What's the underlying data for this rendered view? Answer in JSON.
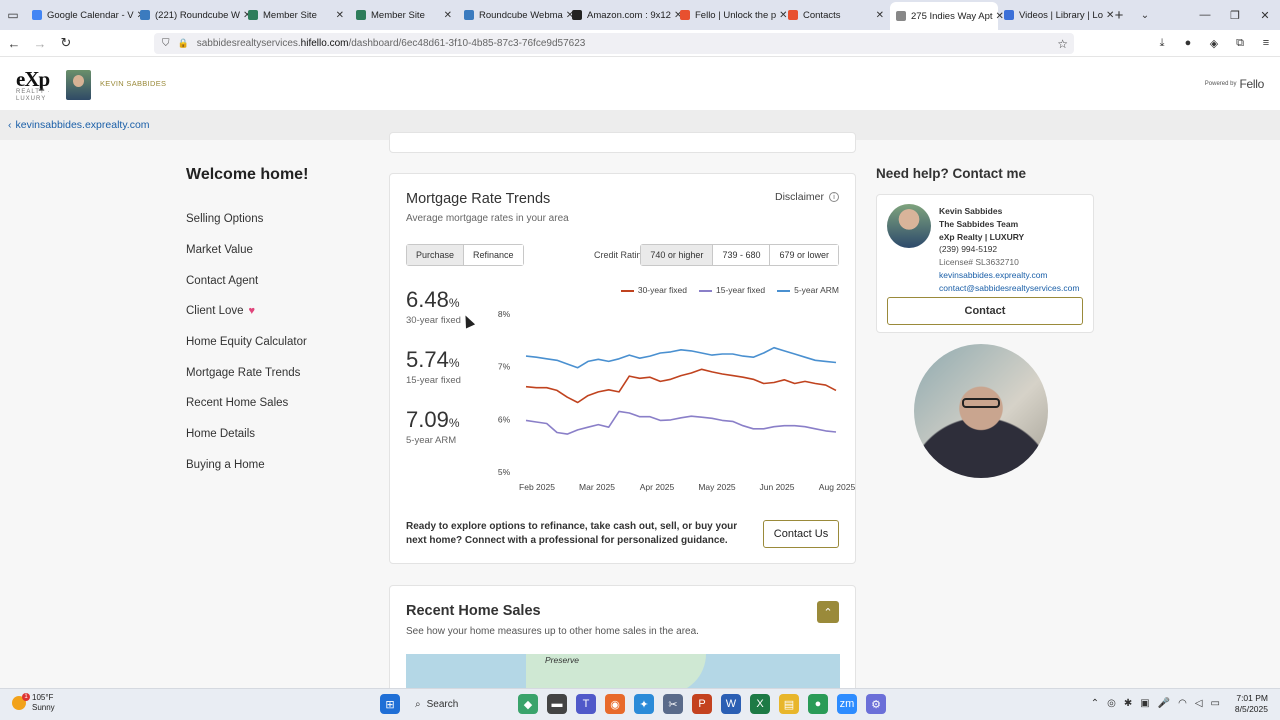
{
  "browser": {
    "tabs": [
      {
        "label": "Google Calendar - V",
        "color": "#4285f4"
      },
      {
        "label": "(221) Roundcube W",
        "color": "#3b7bbf"
      },
      {
        "label": "Member Site",
        "color": "#2e7d5b"
      },
      {
        "label": "Member Site",
        "color": "#2e7d5b"
      },
      {
        "label": "Roundcube Webma",
        "color": "#3b7bbf"
      },
      {
        "label": "Amazon.com : 9x12",
        "color": "#222222"
      },
      {
        "label": "Fello | Unlock the p",
        "color": "#e8502f"
      },
      {
        "label": "Contacts",
        "color": "#e8502f"
      },
      {
        "label": "275 Indies Way Apt",
        "color": "#888888"
      },
      {
        "label": "Videos | Library | Lo",
        "color": "#3b6fd8"
      }
    ],
    "active_tab_index": 8,
    "url": {
      "prefix": "sabbidesrealtyservices.",
      "host": "hifello.com",
      "path": "/dashboard/6ec48d61-3f10-4b85-87c3-76fce9d57623"
    }
  },
  "site": {
    "agent_header_name": "KEVIN SABBIDES",
    "logo_text": "eXp",
    "logo_sub": "REALTY · LUXURY",
    "powered_by": "Powered by",
    "powered_brand": "Fello",
    "back_link": "kevinsabbides.exprealty.com"
  },
  "nav": {
    "welcome": "Welcome home!",
    "items": [
      "Selling Options",
      "Market Value",
      "Contact Agent",
      "Client Love",
      "Home Equity Calculator",
      "Mortgage Rate Trends",
      "Recent Home Sales",
      "Home Details",
      "Buying a Home"
    ]
  },
  "mortgage": {
    "title": "Mortgage Rate Trends",
    "subtitle": "Average mortgage rates in your area",
    "disclaimer": "Disclaimer",
    "purpose_options": [
      "Purchase",
      "Refinance"
    ],
    "purpose_selected": 0,
    "credit_label": "Credit Rating",
    "credit_options": [
      "740 or higher",
      "739 - 680",
      "679 or lower"
    ],
    "credit_selected": 0,
    "rates": [
      {
        "value": "6.48",
        "unit": "%",
        "label": "30-year fixed"
      },
      {
        "value": "5.74",
        "unit": "%",
        "label": "15-year fixed"
      },
      {
        "value": "7.09",
        "unit": "%",
        "label": "5-year ARM"
      }
    ],
    "cta_text": "Ready to explore options to refinance, take cash out, sell, or buy your next home? Connect with a professional for personalized guidance.",
    "cta_button": "Contact Us"
  },
  "chart_data": {
    "type": "line",
    "x": [
      "Jan 2025",
      "Jan 2025",
      "Jan 2025",
      "Feb 2025",
      "Feb 2025",
      "Feb 2025",
      "Feb 2025",
      "Feb 2025",
      "Mar 2025",
      "Mar 2025",
      "Mar 2025",
      "Mar 2025",
      "Mar 2025",
      "Apr 2025",
      "Apr 2025",
      "Apr 2025",
      "Apr 2025",
      "Apr 2025",
      "May 2025",
      "May 2025",
      "May 2025",
      "May 2025",
      "May 2025",
      "Jun 2025",
      "Jun 2025",
      "Jun 2025",
      "Jun 2025",
      "Jul 2025",
      "Jul 2025",
      "Jul 2025",
      "Jul 2025"
    ],
    "x_ticks": [
      "Feb 2025",
      "Mar 2025",
      "Apr 2025",
      "May 2025",
      "Jun 2025",
      "Aug 2025"
    ],
    "ylim": [
      5,
      8
    ],
    "y_ticks": [
      "5%",
      "6%",
      "7%",
      "8%"
    ],
    "series": [
      {
        "name": "30-year fixed",
        "color": "#c0431f",
        "values": [
          6.62,
          6.6,
          6.6,
          6.55,
          6.42,
          6.32,
          6.45,
          6.52,
          6.56,
          6.52,
          6.82,
          6.78,
          6.8,
          6.72,
          6.76,
          6.83,
          6.88,
          6.95,
          6.9,
          6.86,
          6.83,
          6.8,
          6.76,
          6.68,
          6.7,
          6.75,
          6.68,
          6.72,
          6.68,
          6.65,
          6.55
        ]
      },
      {
        "name": "15-year fixed",
        "color": "#8a7fc8",
        "values": [
          5.98,
          5.95,
          5.92,
          5.75,
          5.72,
          5.8,
          5.85,
          5.9,
          5.85,
          6.15,
          6.12,
          6.05,
          6.05,
          5.98,
          5.99,
          6.03,
          6.06,
          6.04,
          6.02,
          5.98,
          5.96,
          5.88,
          5.82,
          5.82,
          5.86,
          5.88,
          5.88,
          5.86,
          5.82,
          5.78,
          5.76
        ]
      },
      {
        "name": "5-year ARM",
        "color": "#4a90d0",
        "values": [
          7.2,
          7.18,
          7.15,
          7.12,
          7.05,
          6.98,
          7.1,
          7.14,
          7.1,
          7.15,
          7.22,
          7.16,
          7.2,
          7.26,
          7.28,
          7.32,
          7.3,
          7.26,
          7.22,
          7.24,
          7.24,
          7.2,
          7.18,
          7.26,
          7.36,
          7.3,
          7.24,
          7.18,
          7.12,
          7.1,
          7.08
        ]
      }
    ]
  },
  "recent": {
    "title": "Recent Home Sales",
    "subtitle": "See how your home measures up to other home sales in the area.",
    "map_label": "Preserve"
  },
  "help": {
    "title": "Need help? Contact me",
    "name": "Kevin Sabbides",
    "team": "The Sabbides Team",
    "brokerage": "eXp Realty | LUXURY",
    "phone": "(239) 994-5192",
    "license": "License# SL3632710",
    "website": "kevinsabbides.exprealty.com",
    "email": "contact@sabbidesrealtyservices.com",
    "contact_button": "Contact"
  },
  "taskbar": {
    "temp": "105°F",
    "condition": "Sunny",
    "weather_badge": "1",
    "search": "Search",
    "time": "7:01 PM",
    "date": "8/5/2025"
  }
}
